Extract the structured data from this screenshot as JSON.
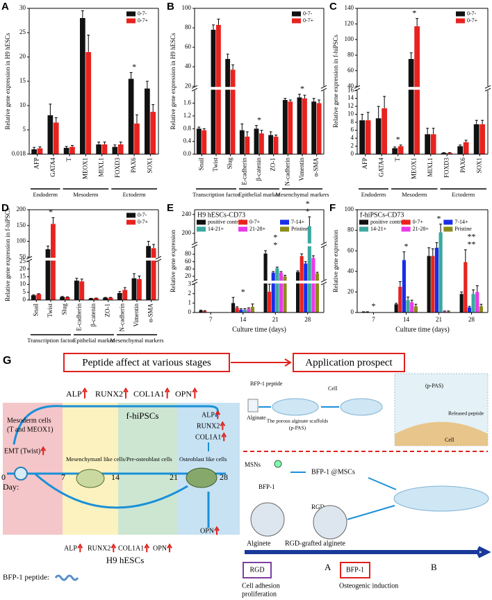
{
  "chart_data": [
    {
      "type": "bar",
      "panel": "A",
      "ylabel": "Relative gene expression in H9 hESCs",
      "xtick_rotation": 90,
      "legend": "upper right",
      "categories": [
        "AFP",
        "GATA4",
        "T",
        "MEOX1",
        "MIXL1",
        "FOXD3",
        "PAX6",
        "SOX1"
      ],
      "series": [
        {
          "name": "0-7-",
          "color": "#111111",
          "values": [
            1.0,
            8.0,
            1.3,
            28.0,
            2.0,
            1.5,
            15.5,
            13.5
          ],
          "errors": [
            0.4,
            2.3,
            0.3,
            1.5,
            0.5,
            0.4,
            1.3,
            1.5
          ]
        },
        {
          "name": "0-7+",
          "color": "#e8231f",
          "values": [
            1.2,
            6.5,
            1.5,
            21.0,
            2.0,
            2.0,
            6.3,
            8.7
          ],
          "errors": [
            0.3,
            1.0,
            0.3,
            3.5,
            0.5,
            0.5,
            1.8,
            1.5
          ]
        }
      ],
      "ylim": [
        0,
        30
      ],
      "yticks": [
        0.018,
        5,
        10,
        15,
        20,
        25,
        30
      ],
      "groups": [
        "Endoderm",
        "Mesoderm",
        "Ectoderm"
      ],
      "annotations": [
        "*"
      ]
    },
    {
      "type": "bar",
      "panel": "B",
      "ylabel": "Relative gene expression in H9 hESCs",
      "xtick_rotation": 90,
      "legend": "upper right",
      "categories": [
        "Snail",
        "Twist",
        "Slug",
        "E-cadherin",
        "β-catenin",
        "ZO-1",
        "N-cadherin",
        "Vimentin",
        "α-SMA"
      ],
      "series": [
        {
          "name": "0-7-",
          "color": "#111111",
          "values": [
            0.8,
            78,
            48,
            0.75,
            0.8,
            0.6,
            1.7,
            1.78,
            1.65
          ],
          "errors": [
            0.05,
            5,
            5,
            0.2,
            0.1,
            0.1,
            0.05,
            0.1,
            0.1
          ]
        },
        {
          "name": "0-7+",
          "color": "#e8231f",
          "values": [
            0.75,
            83,
            37,
            0.55,
            0.65,
            0.55,
            1.65,
            1.75,
            1.6
          ],
          "errors": [
            0.05,
            6,
            5,
            0.15,
            0.1,
            0.05,
            0.05,
            0.1,
            0.1
          ]
        }
      ],
      "ylim": [
        [
          0,
          2
        ],
        [
          20,
          100
        ]
      ],
      "yticks": [
        {
          "value": 0,
          "label": "0.0"
        },
        0.4,
        0.8,
        1.2,
        1.6,
        20,
        40,
        60,
        80,
        100
      ],
      "groups": [
        "Transcription factor",
        "Epithelial marker",
        "Mesenchymal markers"
      ],
      "annotations": [
        "*",
        "*"
      ]
    },
    {
      "type": "bar",
      "panel": "C",
      "ylabel": "Relative gene expression in f-hiPSCs",
      "xtick_rotation": 90,
      "legend": "upper right",
      "categories": [
        "AFP",
        "GATA4",
        "T",
        "MEOX1",
        "MIXL1",
        "FOXD3",
        "PAX6",
        "SOX1"
      ],
      "series": [
        {
          "name": "0-7-",
          "color": "#111111",
          "values": [
            8.5,
            9,
            1.5,
            75,
            5,
            0.3,
            2,
            7.5
          ],
          "errors": [
            1.5,
            3,
            0.3,
            8,
            1.5,
            0.1,
            0.3,
            1
          ]
        },
        {
          "name": "0-7+",
          "color": "#e8231f",
          "values": [
            8.5,
            11.5,
            2,
            117,
            5,
            0.3,
            3,
            7.5
          ],
          "errors": [
            2,
            3,
            0.3,
            10,
            1.5,
            0.1,
            0.5,
            1
          ]
        }
      ],
      "ylim": [
        [
          0,
          16
        ],
        [
          40,
          140
        ]
      ],
      "yticks": [
        0,
        2,
        4,
        6,
        8,
        10,
        12,
        14,
        16,
        40,
        60,
        80,
        100,
        120,
        140
      ],
      "groups": [
        "Endoderm",
        "Mesoderm",
        "Ectoderm"
      ],
      "annotations": [
        "*",
        "*"
      ]
    },
    {
      "type": "bar",
      "panel": "D",
      "ylabel": "Relative gene expression in f-hiPSCs",
      "xtick_rotation": 90,
      "legend": "upper right",
      "categories": [
        "Snail",
        "Twist",
        "Slug",
        "E-cadherin",
        "β-catenin",
        "ZO-1",
        "N-cadherin",
        "Vimentin",
        "α-SMA"
      ],
      "series": [
        {
          "name": "0-7-",
          "color": "#111111",
          "values": [
            3,
            75,
            2,
            12.5,
            1,
            1.5,
            4.5,
            14,
            85
          ],
          "errors": [
            0.3,
            10,
            0.3,
            1.5,
            0.1,
            0.2,
            1,
            3,
            15
          ]
        },
        {
          "name": "0-7+",
          "color": "#e8231f",
          "values": [
            3.8,
            155,
            1.8,
            12,
            1.2,
            1.5,
            6.5,
            13.5,
            78
          ],
          "errors": [
            0.3,
            20,
            0.2,
            1.5,
            0.1,
            0.2,
            1.5,
            2,
            12
          ]
        }
      ],
      "ylim": [
        [
          0,
          25
        ],
        [
          50,
          200
        ]
      ],
      "yticks": [
        0,
        5,
        10,
        15,
        20,
        25,
        50,
        100,
        150,
        200
      ],
      "groups": [
        "Transcription factor",
        "Epithelial marker",
        "Mesenchymal markers"
      ],
      "annotations": [
        "*"
      ]
    },
    {
      "type": "bar",
      "panel": "E",
      "title": "H9 hESCs-CD73",
      "ylabel": "Relative gene expression",
      "xlabel": "Culture time (days)",
      "legend": "upper left",
      "categories": [
        "7",
        "14",
        "21",
        "28"
      ],
      "series": [
        {
          "name": "positive control",
          "color": "#111111",
          "values": [
            0.2,
            1.0,
            82,
            32
          ],
          "errors": [
            0.05,
            0.6,
            8,
            3
          ]
        },
        {
          "name": "0-7+",
          "color": "#e8231f",
          "values": [
            0.15,
            0.5,
            2.2,
            75
          ],
          "errors": [
            0.05,
            0.1,
            0.8,
            6
          ]
        },
        {
          "name": "7-14+",
          "color": "#1a2ee8",
          "values": [
            null,
            0.3,
            30,
            55
          ],
          "errors": [
            null,
            0.1,
            3,
            5
          ]
        },
        {
          "name": "14-21+",
          "color": "#3aa9a0",
          "values": [
            null,
            0.3,
            42,
            215
          ],
          "errors": [
            null,
            0.1,
            3,
            20
          ]
        },
        {
          "name": "21-28+",
          "color": "#e83be8",
          "values": [
            null,
            0.4,
            30,
            70
          ],
          "errors": [
            null,
            0.1,
            3,
            6
          ]
        },
        {
          "name": "Pristine",
          "color": "#8b8b1a",
          "values": [
            null,
            0.6,
            20,
            28
          ],
          "errors": [
            null,
            0.3,
            3,
            3
          ]
        }
      ],
      "ylim": [
        [
          0,
          3
        ],
        [
          10,
          100
        ],
        [
          180,
          250
        ]
      ],
      "yticks": [
        0,
        1,
        2,
        3,
        20,
        40,
        60,
        80,
        200,
        240
      ],
      "annotations": [
        "*",
        "*",
        "*",
        "*",
        "*"
      ]
    },
    {
      "type": "bar",
      "panel": "F",
      "title": "f-hiPSCs-CD73",
      "ylabel": "Relative gene expression",
      "xlabel": "Culture time (days)",
      "legend": "upper left",
      "categories": [
        "7",
        "14",
        "21",
        "28"
      ],
      "series": [
        {
          "name": "positive control",
          "color": "#111111",
          "values": [
            0.5,
            8,
            55,
            18
          ],
          "errors": [
            0.2,
            1,
            8,
            2
          ]
        },
        {
          "name": "0-7+",
          "color": "#e8231f",
          "values": [
            0.5,
            25,
            55,
            49
          ],
          "errors": [
            0.2,
            5,
            7,
            12
          ]
        },
        {
          "name": "7-14+",
          "color": "#1a2ee8",
          "values": [
            null,
            51,
            63,
            5
          ],
          "errors": [
            null,
            8,
            5,
            1
          ]
        },
        {
          "name": "14-21+",
          "color": "#3aa9a0",
          "values": [
            null,
            12,
            78,
            18
          ],
          "errors": [
            null,
            3,
            8,
            4
          ]
        },
        {
          "name": "21-28+",
          "color": "#e83be8",
          "values": [
            null,
            10,
            1,
            20
          ],
          "errors": [
            null,
            2,
            0.5,
            6
          ]
        },
        {
          "name": "Pristine",
          "color": "#8b8b1a",
          "values": [
            null,
            6,
            1,
            6
          ],
          "errors": [
            null,
            2,
            0.5,
            2
          ]
        }
      ],
      "ylim": [
        0,
        100
      ],
      "yticks": [
        0,
        20,
        40,
        60,
        80,
        100
      ],
      "annotations": [
        "*",
        "*",
        "*",
        "**",
        "**"
      ]
    }
  ],
  "diagram": {
    "panel": "G",
    "stage_title": "Peptide affect at various stages",
    "application_title": "Application prospect",
    "top_markers": [
      "ALP",
      "RUNX2",
      "COL1A1",
      "OPN"
    ],
    "mesoderm": [
      "Mesoderm cells",
      "(T and MEOX1)"
    ],
    "emt": "EMT (Twist)",
    "f_hipscs": "f-hiPSCs",
    "mesenchymal": "Mesenchymanl like cells/Pre-osteoblast cells",
    "osteoblast": "Osteoblast like cells",
    "right_markers": [
      "ALP",
      "RUNX2",
      "COL1A1"
    ],
    "opn": "OPN",
    "bottom_markers": [
      "ALP",
      "RUNX2",
      "COL1A1",
      "OPN"
    ],
    "h9": "H9 hESCs",
    "day": "Day:",
    "days": [
      "0",
      "7",
      "14",
      "21",
      "28"
    ],
    "peptide_key": "BFP-1 peptide:",
    "app": {
      "bfp_peptide": "BFP-1 peptide",
      "alginate": "Alginate",
      "scaffold": [
        "The porous alginate scaffolds",
        "(p-PAS)"
      ],
      "cell": "Cell",
      "ppas": "(p-PAS)",
      "released": "Released peptide",
      "cell2": "Cell",
      "msns": "MSNs",
      "bfp1": "BFP-1",
      "bfp_mscs": "BFP-1 @MSCs",
      "rgd": "RGD",
      "alginete": "Alginete",
      "rgd_alginete": "RGD-grafted alginete",
      "a": "A",
      "b": "B",
      "rgd_box": "RGD",
      "bfp_box": "BFP-1",
      "adhesion": [
        "Cell adhesion",
        "proliferation"
      ],
      "osteo": "Osteogenic induction"
    }
  }
}
